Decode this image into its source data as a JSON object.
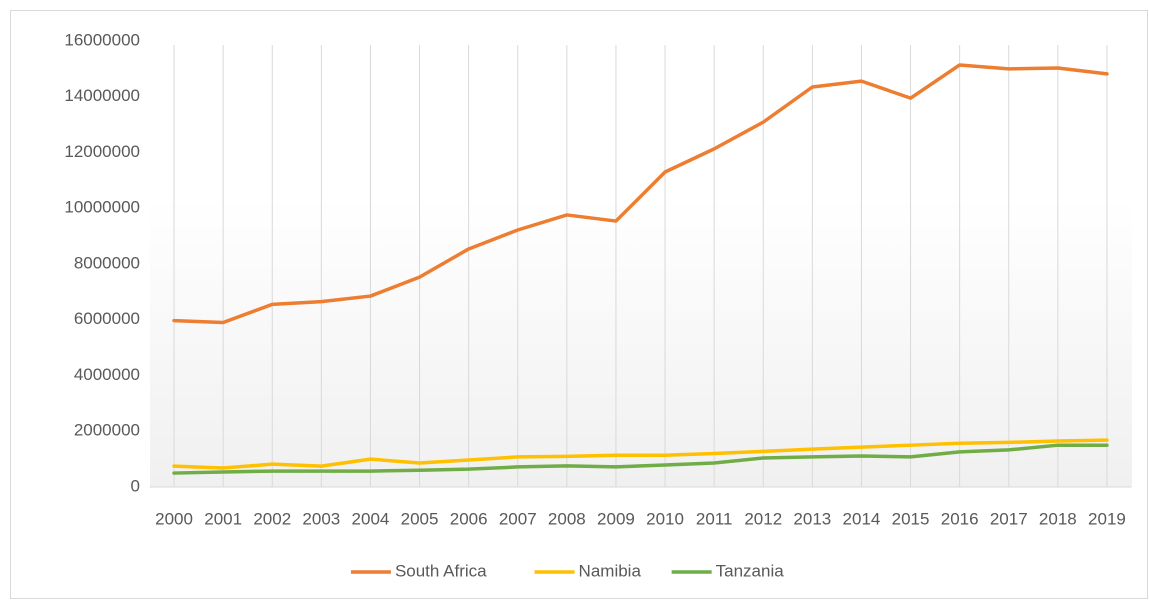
{
  "chart_data": {
    "type": "line",
    "categories": [
      "2000",
      "2001",
      "2002",
      "2003",
      "2004",
      "2005",
      "2006",
      "2007",
      "2008",
      "2009",
      "2010",
      "2011",
      "2012",
      "2013",
      "2014",
      "2015",
      "2016",
      "2017",
      "2018",
      "2019"
    ],
    "series": [
      {
        "name": "South Africa",
        "color": "#ed7d31",
        "values": [
          5970000,
          5900000,
          6550000,
          6650000,
          6850000,
          7530000,
          8540000,
          9220000,
          9760000,
          9540000,
          11300000,
          12130000,
          13090000,
          14350000,
          14560000,
          13950000,
          15140000,
          15000000,
          15030000,
          14820000
        ]
      },
      {
        "name": "Namibia",
        "color": "#ffc000",
        "values": [
          750000,
          680000,
          820000,
          750000,
          1000000,
          860000,
          970000,
          1080000,
          1100000,
          1140000,
          1140000,
          1200000,
          1280000,
          1360000,
          1430000,
          1500000,
          1570000,
          1600000,
          1650000,
          1680000
        ]
      },
      {
        "name": "Tanzania",
        "color": "#70ad47",
        "values": [
          500000,
          540000,
          570000,
          570000,
          570000,
          600000,
          640000,
          720000,
          760000,
          720000,
          790000,
          860000,
          1040000,
          1080000,
          1110000,
          1080000,
          1260000,
          1330000,
          1500000,
          1500000
        ]
      }
    ],
    "ylim": [
      0,
      16000000
    ],
    "yticks": [
      0,
      2000000,
      4000000,
      6000000,
      8000000,
      10000000,
      12000000,
      14000000,
      16000000
    ],
    "grid": true,
    "legend": "bottom"
  }
}
